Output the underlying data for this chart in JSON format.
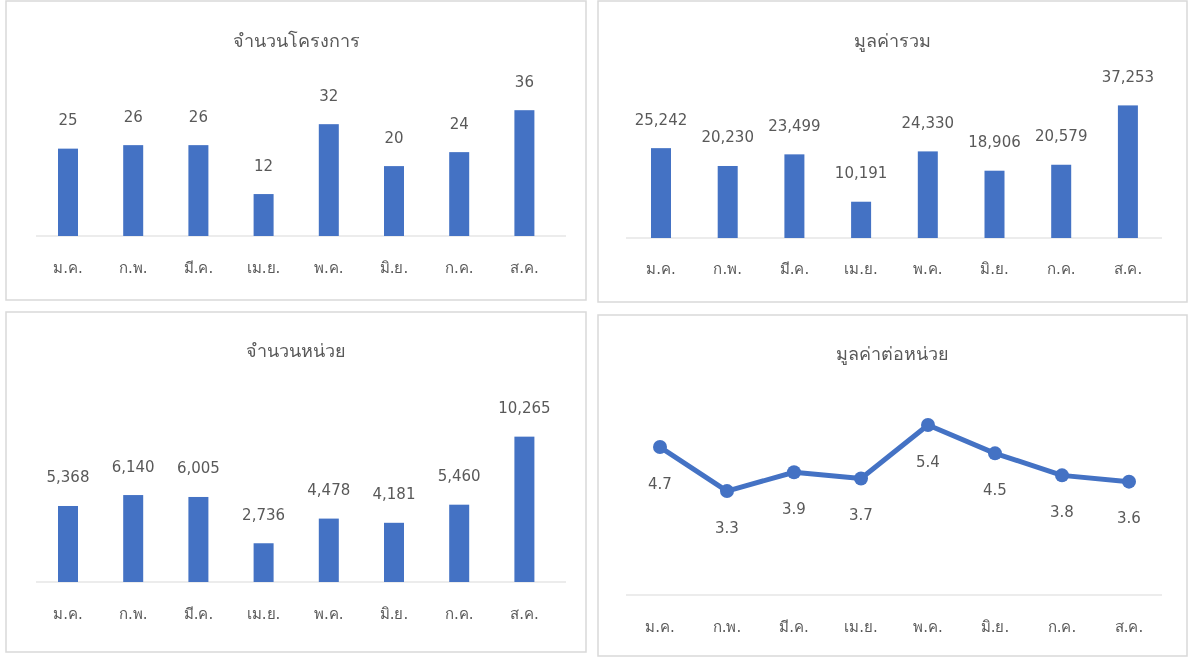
{
  "chart_data": [
    {
      "type": "bar",
      "title": "จำนวนโครงการ",
      "categories": [
        "ม.ค.",
        "ก.พ.",
        "มี.ค.",
        "เม.ย.",
        "พ.ค.",
        "มิ.ย.",
        "ก.ค.",
        "ส.ค."
      ],
      "values": [
        25,
        26,
        26,
        12,
        32,
        20,
        24,
        36
      ],
      "color": "#4472c4",
      "data_labels": true
    },
    {
      "type": "bar",
      "title": "มูลค่ารวม",
      "categories": [
        "ม.ค.",
        "ก.พ.",
        "มี.ค.",
        "เม.ย.",
        "พ.ค.",
        "มิ.ย.",
        "ก.ค.",
        "ส.ค."
      ],
      "values": [
        25242,
        20230,
        23499,
        10191,
        24330,
        18906,
        20579,
        37253
      ],
      "value_labels": [
        "25,242",
        "20,230",
        "23,499",
        "10,191",
        "24,330",
        "18,906",
        "20,579",
        "37,253"
      ],
      "color": "#4472c4"
    },
    {
      "type": "bar",
      "title": "จำนวนหน่วย",
      "categories": [
        "ม.ค.",
        "ก.พ.",
        "มี.ค.",
        "เม.ย.",
        "พ.ค.",
        "มิ.ย.",
        "ก.ค.",
        "ส.ค."
      ],
      "values": [
        5368,
        6140,
        6005,
        2736,
        4478,
        4181,
        5460,
        10265
      ],
      "value_labels": [
        "5,368",
        "6,140",
        "6,005",
        "2,736",
        "4,478",
        "4,181",
        "5,460",
        "10,265"
      ],
      "color": "#4472c4"
    },
    {
      "type": "line",
      "title": "มูลค่าต่อหน่วย",
      "categories": [
        "ม.ค.",
        "ก.พ.",
        "มี.ค.",
        "เม.ย.",
        "พ.ค.",
        "มิ.ย.",
        "ก.ค.",
        "ส.ค."
      ],
      "values": [
        4.7,
        3.3,
        3.9,
        3.7,
        5.4,
        4.5,
        3.8,
        3.6
      ],
      "color": "#4472c4",
      "data_labels": true,
      "marker": "circle"
    }
  ]
}
